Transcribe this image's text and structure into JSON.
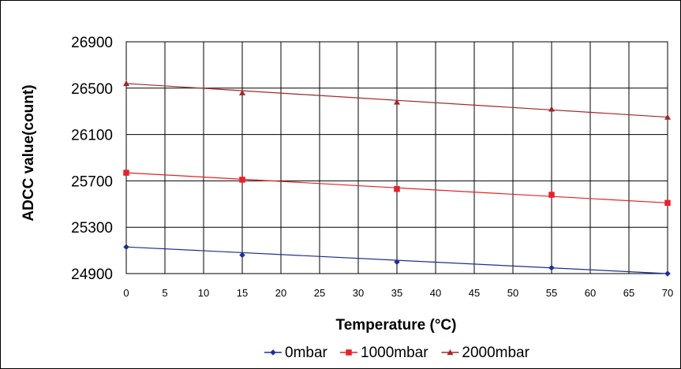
{
  "chart_data": {
    "type": "line",
    "title": "",
    "xlabel": "Temperature (°C)",
    "ylabel": "ADCC value(count)",
    "xlim": [
      0,
      70
    ],
    "ylim": [
      24900,
      26900
    ],
    "x_ticks": [
      "0",
      "5",
      "10",
      "15",
      "20",
      "25",
      "30",
      "35",
      "40",
      "45",
      "50",
      "55",
      "60",
      "65",
      "70"
    ],
    "y_ticks": [
      "24900",
      "25300",
      "25700",
      "26100",
      "26500",
      "26900"
    ],
    "grid": true,
    "legend_position": "bottom",
    "x": [
      0,
      15,
      35,
      55,
      70
    ],
    "series": [
      {
        "name": "0mbar",
        "color": "#1f2f8f",
        "marker": "diamond",
        "values": [
          25130,
          25060,
          25000,
          24950,
          24900
        ],
        "trend": [
          25130,
          24900
        ]
      },
      {
        "name": "1000mbar",
        "color": "#e8202a",
        "marker": "square",
        "values": [
          25770,
          25710,
          25630,
          25580,
          25510
        ],
        "trend": [
          25770,
          25510
        ]
      },
      {
        "name": "2000mbar",
        "color": "#a0282a",
        "marker": "triangle",
        "values": [
          26540,
          26460,
          26380,
          26320,
          26250
        ],
        "trend": [
          26540,
          26250
        ]
      }
    ]
  }
}
